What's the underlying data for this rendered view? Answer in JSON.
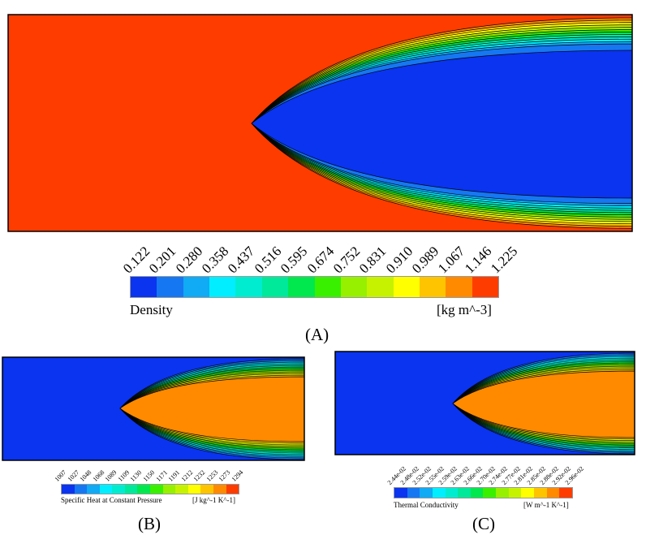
{
  "palette": [
    "#0a34f0",
    "#1677f2",
    "#10aaf5",
    "#00eeff",
    "#00ecd0",
    "#00e89a",
    "#00e84e",
    "#38f000",
    "#96f000",
    "#c6f200",
    "#ffff00",
    "#ffc400",
    "#ff8a00",
    "#ff3c00"
  ],
  "chart_data": [
    {
      "type": "heatmap",
      "panel": "(A)",
      "variable": "Density",
      "units": "[kg m^-3]",
      "levels": [
        "0.122",
        "0.201",
        "0.280",
        "0.358",
        "0.437",
        "0.516",
        "0.595",
        "0.674",
        "0.752",
        "0.831",
        "0.910",
        "0.989",
        "1.067",
        "1.146",
        "1.225"
      ],
      "background_level": "1.225",
      "core_level": "0.122"
    },
    {
      "type": "heatmap",
      "panel": "(B)",
      "variable": "Specific Heat at Constant Pressure",
      "units": "[J kg^-1 K^-1]",
      "levels": [
        "1007",
        "1027",
        "1048",
        "1068",
        "1089",
        "1109",
        "1130",
        "1150",
        "1171",
        "1191",
        "1212",
        "1232",
        "1253",
        "1273",
        "1294"
      ],
      "background_level": "1007",
      "core_level": "1253"
    },
    {
      "type": "heatmap",
      "panel": "(C)",
      "variable": "Thermal Conductivity",
      "units": "[W m^-1 K^-1]",
      "levels": [
        "2.44e-02",
        "2.48e-02",
        "2.52e-02",
        "2.55e-02",
        "2.59e-02",
        "2.63e-02",
        "2.66e-02",
        "2.70e-02",
        "2.74e-02",
        "2.77e-02",
        "2.81e-02",
        "2.85e-02",
        "2.88e-02",
        "2.92e-02",
        "2.96e-02"
      ],
      "background_level": "2.44e-02",
      "core_level": "2.88e-02"
    }
  ]
}
